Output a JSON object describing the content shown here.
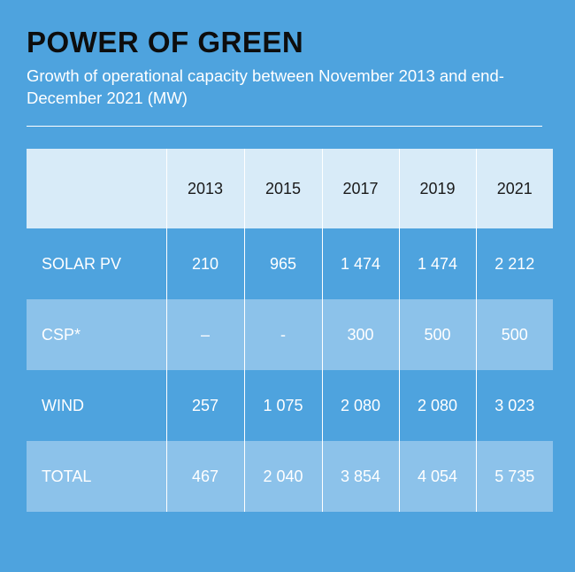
{
  "title": "POWER OF GREEN",
  "subtitle": "Growth of operational capacity between November 2013 and end-December 2021 (MW)",
  "colors": {
    "background": "#4ea3de",
    "header_row": "#d8ebf8",
    "light_row": "#8cc2ea",
    "text": "#ffffff",
    "title_text": "#0d0d0d"
  },
  "chart_data": {
    "type": "table",
    "title": "POWER OF GREEN",
    "subtitle": "Growth of operational capacity between November 2013 and end-December 2021 (MW)",
    "columns": [
      "",
      "2013",
      "2015",
      "2017",
      "2019",
      "2021"
    ],
    "rows": [
      {
        "label": "SOLAR PV",
        "cells": [
          "210",
          "965",
          "1 474",
          "1 474",
          "2 212"
        ]
      },
      {
        "label": "CSP*",
        "cells": [
          "–",
          "-",
          "300",
          "500",
          "500"
        ]
      },
      {
        "label": "WIND",
        "cells": [
          "257",
          "1 075",
          "2 080",
          "2 080",
          "3 023"
        ]
      },
      {
        "label": "TOTAL",
        "cells": [
          "467",
          "2 040",
          "3 854",
          "4 054",
          "5 735"
        ]
      }
    ]
  }
}
